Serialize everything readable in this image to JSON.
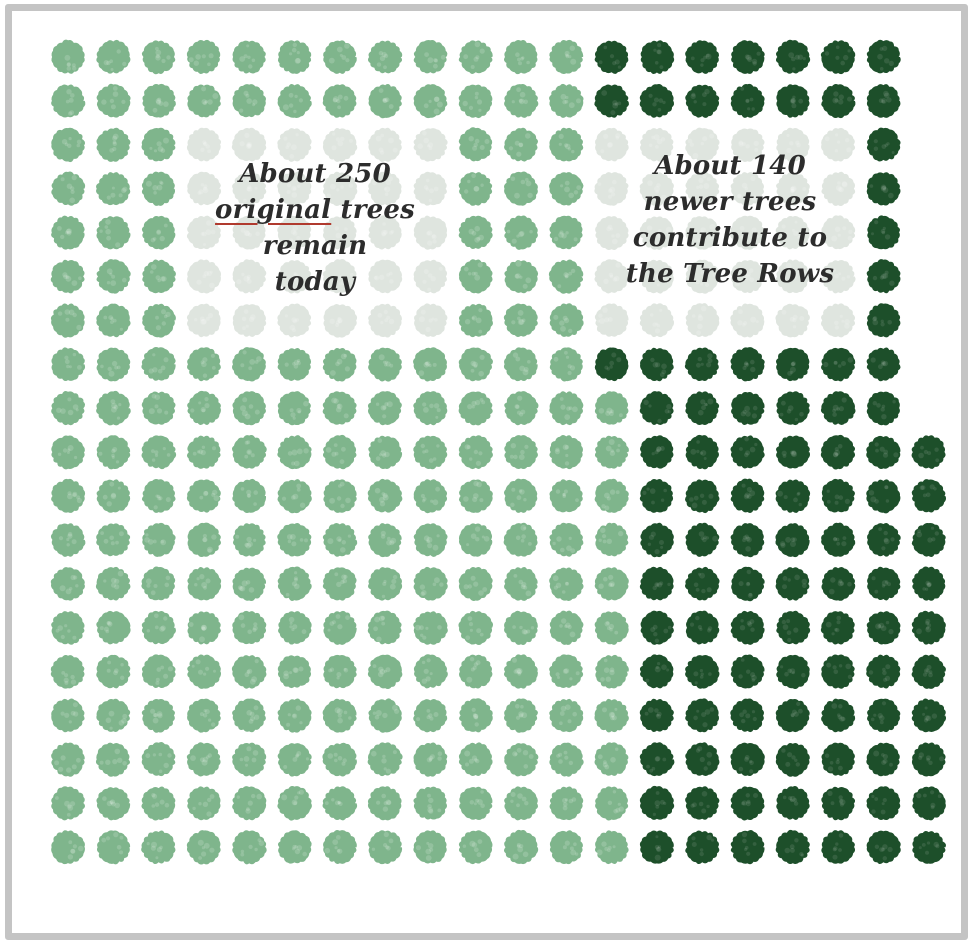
{
  "chart_data": {
    "type": "unit-chart",
    "title": "",
    "series": [
      {
        "name": "original",
        "count": 250,
        "color": "#7fb58c"
      },
      {
        "name": "newer",
        "count": 140,
        "color": "#1d4f2a"
      }
    ],
    "callouts": {
      "original": [
        "About 250",
        "original trees",
        "remain",
        "today"
      ],
      "original_underlined_word": "original",
      "newer": [
        "About 140",
        "newer trees",
        "contribute to",
        "the Tree Rows"
      ]
    },
    "colors": {
      "original_tree": "#7fb58c",
      "newer_tree": "#1d4f2a",
      "faded_tree": "#dfe5df",
      "frame": "#c4c4c4"
    }
  }
}
